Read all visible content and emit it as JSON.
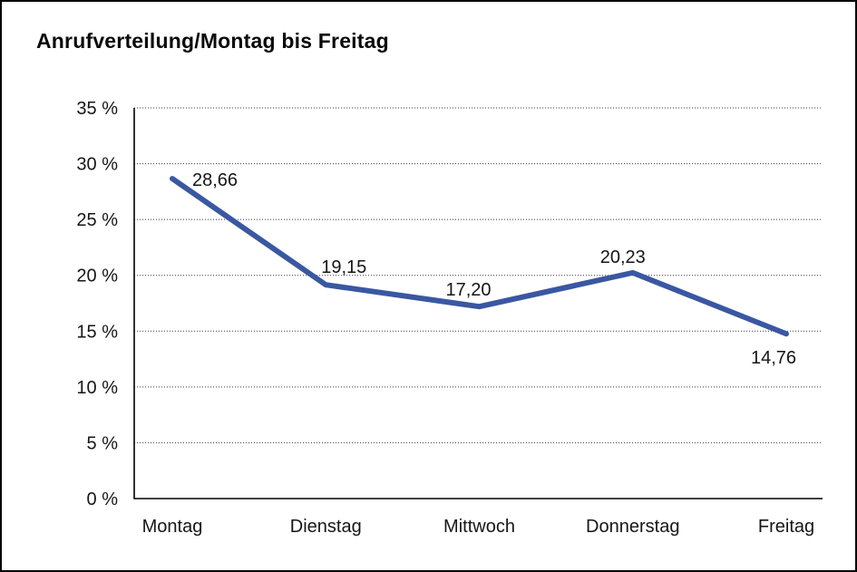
{
  "window": {
    "background_color": "#ffffff",
    "border_color": "#000000"
  },
  "header": {
    "title": "Anrufverteilung/Montag bis Freitag"
  },
  "chart_data": {
    "type": "line",
    "title": "Anrufverteilung/Montag bis Freitag",
    "categories": [
      "Montag",
      "Dienstag",
      "Mittwoch",
      "Donnerstag",
      "Freitag"
    ],
    "values": [
      28.66,
      19.15,
      17.2,
      20.23,
      14.76
    ],
    "point_labels": [
      "28,66",
      "19,15",
      "17,20",
      "20,23",
      "14,76"
    ],
    "xlabel": "",
    "ylabel": "",
    "ylim": [
      0,
      35
    ],
    "ytick_step": 5,
    "ytick_labels": [
      "0 %",
      "5 %",
      "10 %",
      "15 %",
      "20 %",
      "25 %",
      "30 %",
      "35 %"
    ],
    "grid": "horizontal-dotted",
    "legend_position": "none",
    "line_color": "#3a57a2",
    "line_width": 6,
    "label_color": "#161616",
    "axis_color": "#000000"
  }
}
